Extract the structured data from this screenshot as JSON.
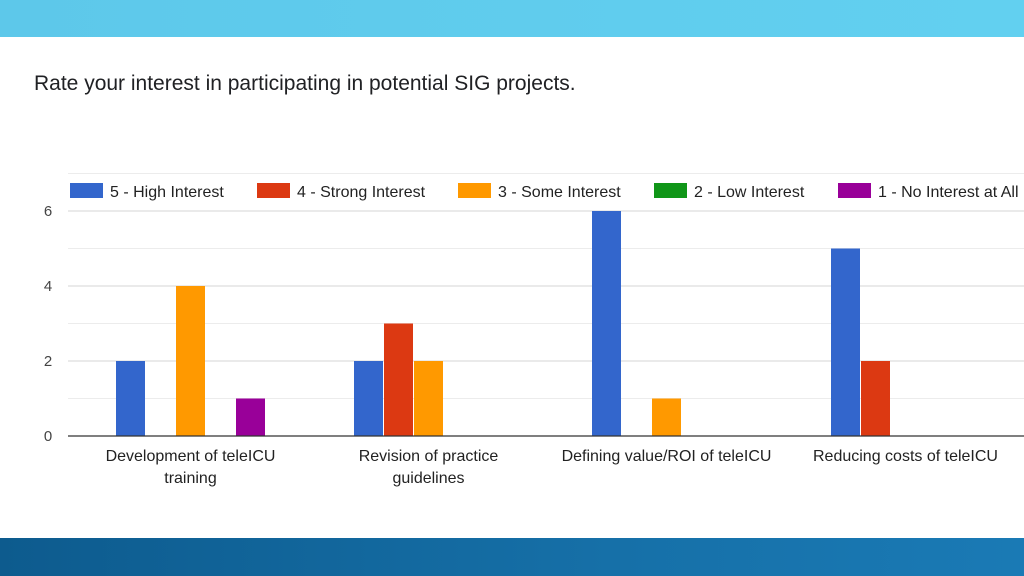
{
  "question": "Rate your interest in participating in potential SIG projects.",
  "colors": {
    "top_bar": "#62d0f0",
    "bottom_bar": "#13679e"
  },
  "chart_data": {
    "type": "bar",
    "title": "Rate your interest in participating in potential SIG projects.",
    "xlabel": "",
    "ylabel": "",
    "ylim": [
      0,
      7
    ],
    "yticks": [
      0,
      2,
      4,
      6
    ],
    "grid": true,
    "legend_position": "top",
    "categories": [
      [
        "Development of teleICU",
        "training"
      ],
      [
        "Revision of practice",
        "guidelines"
      ],
      [
        "Defining value/ROI of teleICU"
      ],
      [
        "Reducing costs of teleICU"
      ]
    ],
    "series": [
      {
        "name": "5 - High Interest",
        "color": "#3366cc",
        "values": [
          2,
          2,
          6,
          5
        ]
      },
      {
        "name": "4 - Strong Interest",
        "color": "#dc3912",
        "values": [
          0,
          3,
          0,
          2
        ]
      },
      {
        "name": "3 - Some Interest",
        "color": "#ff9900",
        "values": [
          4,
          2,
          1,
          0
        ]
      },
      {
        "name": "2 - Low Interest",
        "color": "#109618",
        "values": [
          0,
          0,
          0,
          0
        ]
      },
      {
        "name": "1 - No Interest at All",
        "color": "#990099",
        "values": [
          1,
          0,
          0,
          0
        ]
      }
    ]
  }
}
